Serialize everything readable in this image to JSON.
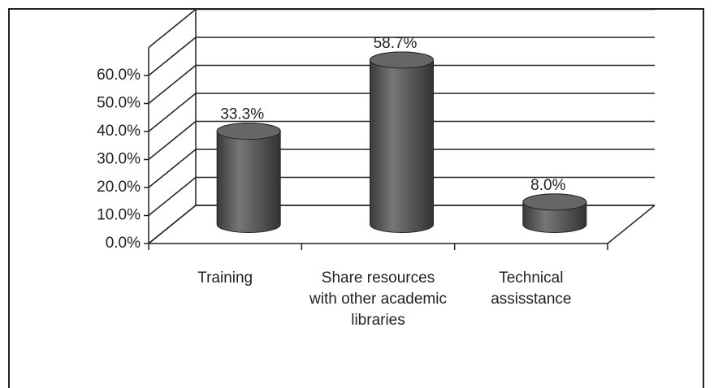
{
  "chart_data": {
    "type": "bar",
    "categories": [
      "Training",
      "Share resources with other academic libraries",
      "Technical assisstance"
    ],
    "values": [
      33.3,
      58.7,
      8.0
    ],
    "value_labels": [
      "33.3%",
      "58.7%",
      "8.0%"
    ],
    "color": "#555555",
    "ylim": [
      0,
      70
    ],
    "yticks": [
      {
        "value": 0,
        "label": "0.0%"
      },
      {
        "value": 10,
        "label": "10.0%"
      },
      {
        "value": 20,
        "label": "20.0%"
      },
      {
        "value": 30,
        "label": "30.0%"
      },
      {
        "value": 40,
        "label": "40.0%"
      },
      {
        "value": 50,
        "label": "50.0%"
      },
      {
        "value": 60,
        "label": "60.0%"
      }
    ],
    "grid": true
  }
}
